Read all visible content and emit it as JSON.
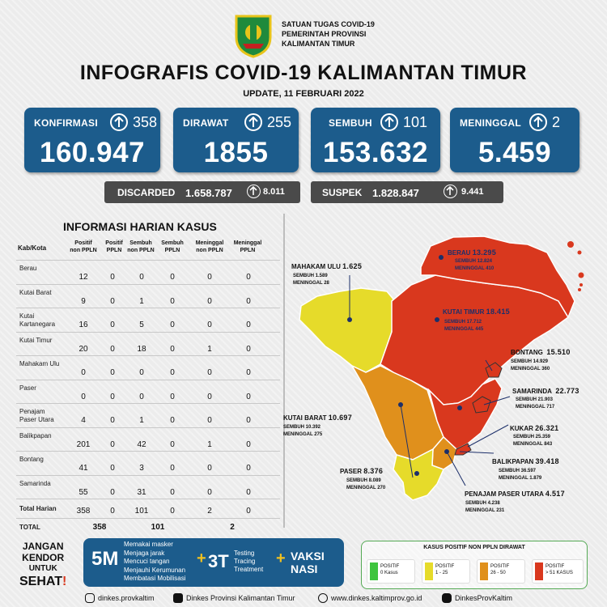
{
  "header": {
    "org_lines": [
      "SATUAN TUGAS COVID-19",
      "PEMERINTAH PROVINSI",
      "KALIMANTAN TIMUR"
    ],
    "title": "INFOGRAFIS COVID-19 KALIMANTAN TIMUR",
    "update": "UPDATE, 11 FEBRUARI 2022"
  },
  "stats": [
    {
      "label": "KONFIRMASI",
      "increase": "358",
      "total": "160.947"
    },
    {
      "label": "DIRAWAT",
      "increase": "255",
      "total": "1855"
    },
    {
      "label": "SEMBUH",
      "increase": "101",
      "total": "153.632"
    },
    {
      "label": "MENINGGAL",
      "increase": "2",
      "total": "5.459"
    }
  ],
  "discarded": {
    "label": "DISCARDED",
    "total": "1.658.787",
    "increase": "8.011"
  },
  "suspek": {
    "label": "SUSPEK",
    "total": "1.828.847",
    "increase": "9.441"
  },
  "table": {
    "title": "INFORMASI HARIAN KASUS",
    "headers": [
      "Kab/Kota",
      "Positif non PPLN",
      "Positif PPLN",
      "Sembuh non PPLN",
      "Sembuh PPLN",
      "Meninggal non PPLN",
      "Meninggal PPLN"
    ],
    "rows": [
      {
        "name": "Berau",
        "values": [
          "12",
          "0",
          "0",
          "0",
          "0",
          "0"
        ]
      },
      {
        "name": "Kutai Barat",
        "values": [
          "9",
          "0",
          "1",
          "0",
          "0",
          "0"
        ]
      },
      {
        "name": "Kutai Kartanegara",
        "values": [
          "16",
          "0",
          "5",
          "0",
          "0",
          "0"
        ]
      },
      {
        "name": "Kutai Timur",
        "values": [
          "20",
          "0",
          "18",
          "0",
          "1",
          "0"
        ]
      },
      {
        "name": "Mahakam Ulu",
        "values": [
          "0",
          "0",
          "0",
          "0",
          "0",
          "0"
        ]
      },
      {
        "name": "Paser",
        "values": [
          "0",
          "0",
          "0",
          "0",
          "0",
          "0"
        ]
      },
      {
        "name": "Penajam Paser Utara",
        "values": [
          "4",
          "0",
          "1",
          "0",
          "0",
          "0"
        ]
      },
      {
        "name": "Balikpapan",
        "values": [
          "201",
          "0",
          "42",
          "0",
          "1",
          "0"
        ]
      },
      {
        "name": "Bontang",
        "values": [
          "41",
          "0",
          "3",
          "0",
          "0",
          "0"
        ]
      },
      {
        "name": "Samarinda",
        "values": [
          "55",
          "0",
          "31",
          "0",
          "0",
          "0"
        ]
      }
    ],
    "total_harian": {
      "name": "Total Harian",
      "values": [
        "358",
        "0",
        "101",
        "0",
        "2",
        "0"
      ]
    },
    "total": {
      "name": "TOTAL",
      "values": [
        "358",
        "101",
        "2"
      ]
    }
  },
  "map": {
    "regions": [
      {
        "name": "BERAU",
        "cases": "13.295",
        "sembuh": "SEMBUH 12.824",
        "meninggal": "MENINGGAL 410",
        "color": "#d9381e"
      },
      {
        "name": "MAHAKAM ULU",
        "cases": "1.625",
        "sembuh": "SEMBUH 1.589",
        "meninggal": "MENINGGAL 28",
        "color": "#e6db2a"
      },
      {
        "name": "KUTAI TIMUR",
        "cases": "18.415",
        "sembuh": "SEMBUH 17.712",
        "meninggal": "MENINGGAL 445",
        "color": "#d9381e"
      },
      {
        "name": "BONTANG",
        "cases": "15.510",
        "sembuh": "SEMBUH 14.929",
        "meninggal": "MENINGGAL 360",
        "color": "#d9381e"
      },
      {
        "name": "SAMARINDA",
        "cases": "22.773",
        "sembuh": "SEMBUH 21.903",
        "meninggal": "MENINGGAL 717",
        "color": "#d9381e"
      },
      {
        "name": "KUTAI BARAT",
        "cases": "10.697",
        "sembuh": "SEMBUH 10.392",
        "meninggal": "MENINGGAL 275",
        "color": "#e0901c"
      },
      {
        "name": "KUKAR",
        "cases": "26.321",
        "sembuh": "SEMBUH 25.359",
        "meninggal": "MENINGGAL 843",
        "color": "#d9381e"
      },
      {
        "name": "BALIKPAPAN",
        "cases": "39.418",
        "sembuh": "SEMBUH 36.597",
        "meninggal": "MENINGGAL 1.879",
        "color": "#d9381e"
      },
      {
        "name": "PASER",
        "cases": "8.376",
        "sembuh": "SEMBUH 8.089",
        "meninggal": "MENINGGAL 270",
        "color": "#e6db2a"
      },
      {
        "name": "PENAJAM PASER UTARA",
        "cases": "4.517",
        "sembuh": "SEMBUH 4.238",
        "meninggal": "MENINGGAL 231",
        "color": "#e0901c"
      }
    ]
  },
  "footer": {
    "slogan": [
      "JANGAN",
      "KENDOR",
      "UNTUK",
      "SEHAT"
    ],
    "campaign": {
      "five_m": "5M",
      "five_m_items": [
        "Memakai masker",
        "Menjaga jarak",
        "Mencuci tangan",
        "Menjauhi Kerumunan",
        "Membatasi Mobilisasi"
      ],
      "three_t": "3T",
      "three_t_items": [
        "Testing",
        "Tracing",
        "Treatment"
      ],
      "vaksi": [
        "VAKSI",
        "NASI"
      ],
      "plus": "+"
    },
    "legend": {
      "title": "KASUS POSITIF NON PPLN DIRAWAT",
      "items": [
        {
          "label": "POSITIF",
          "range": "0 Kasus",
          "color": "#3ec43e"
        },
        {
          "label": "POSITIF",
          "range": "1 - 25",
          "color": "#e6db2a"
        },
        {
          "label": "POSITIF",
          "range": "26 - 50",
          "color": "#e0901c"
        },
        {
          "label": "POSITIF",
          "range": "> 51 KASUS",
          "color": "#d9381e"
        }
      ]
    },
    "social": [
      "dinkes.provkaltim",
      "Dinkes Provinsi Kalimantan Timur",
      "www.dinkes.kaltimprov.go.id",
      "DinkesProvKaltim"
    ]
  },
  "colors": {
    "card_blue": "#1c5c8c",
    "bar_gray": "#4a4a4a",
    "red": "#d9381e",
    "orange": "#e0901c",
    "yellow": "#e6db2a"
  }
}
